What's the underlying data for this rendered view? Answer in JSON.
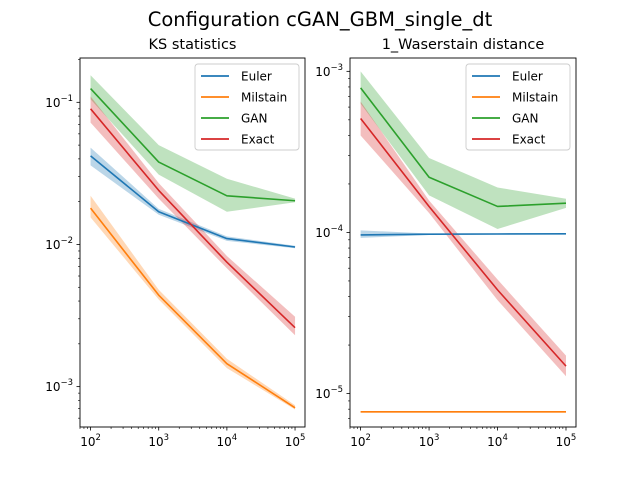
{
  "suptitle": "Configuration cGAN_GBM_single_dt",
  "colors": {
    "Euler": "#1f77b4",
    "Milstain": "#ff7f0e",
    "GAN": "#2ca02c",
    "Exact": "#d62728"
  },
  "chart_data": [
    {
      "type": "line",
      "title": "KS statistics",
      "xscale": "log",
      "yscale": "log",
      "xlim": [
        70,
        140000
      ],
      "ylim": [
        0.00052,
        0.205
      ],
      "x": [
        100,
        1000,
        10000,
        100000
      ],
      "xticks": [
        {
          "value": 100,
          "base": "10",
          "exp": "2"
        },
        {
          "value": 1000,
          "base": "10",
          "exp": "3"
        },
        {
          "value": 10000,
          "base": "10",
          "exp": "4"
        },
        {
          "value": 100000,
          "base": "10",
          "exp": "5"
        }
      ],
      "yticks": [
        {
          "value": 0.1,
          "base": "10",
          "exp": "−1"
        },
        {
          "value": 0.01,
          "base": "10",
          "exp": "−2"
        },
        {
          "value": 0.001,
          "base": "10",
          "exp": "−3"
        }
      ],
      "legend_position": "upper right",
      "series": [
        {
          "name": "Euler",
          "values": [
            0.042,
            0.017,
            0.011,
            0.0096
          ],
          "lower": [
            0.036,
            0.0162,
            0.0106,
            0.0094
          ],
          "upper": [
            0.048,
            0.0178,
            0.0114,
            0.0098
          ]
        },
        {
          "name": "Milstain",
          "values": [
            0.018,
            0.0044,
            0.00145,
            0.00071
          ],
          "lower": [
            0.0155,
            0.0041,
            0.00135,
            0.00069
          ],
          "upper": [
            0.022,
            0.0048,
            0.00157,
            0.00074
          ]
        },
        {
          "name": "GAN",
          "values": [
            0.125,
            0.038,
            0.022,
            0.0203
          ],
          "lower": [
            0.105,
            0.031,
            0.017,
            0.0198
          ],
          "upper": [
            0.155,
            0.05,
            0.029,
            0.021
          ]
        },
        {
          "name": "Exact",
          "values": [
            0.09,
            0.024,
            0.0075,
            0.0026
          ],
          "lower": [
            0.072,
            0.021,
            0.0068,
            0.0023
          ],
          "upper": [
            0.11,
            0.027,
            0.0083,
            0.0031
          ]
        }
      ]
    },
    {
      "type": "line",
      "title": "1_Waserstain distance",
      "xscale": "log",
      "yscale": "log",
      "xlim": [
        70,
        140000
      ],
      "ylim": [
        6.2e-06,
        0.00121
      ],
      "x": [
        100,
        1000,
        10000,
        100000
      ],
      "xticks": [
        {
          "value": 100,
          "base": "10",
          "exp": "2"
        },
        {
          "value": 1000,
          "base": "10",
          "exp": "3"
        },
        {
          "value": 10000,
          "base": "10",
          "exp": "4"
        },
        {
          "value": 100000,
          "base": "10",
          "exp": "5"
        }
      ],
      "yticks": [
        {
          "value": 0.001,
          "base": "10",
          "exp": "−3"
        },
        {
          "value": 0.0001,
          "base": "10",
          "exp": "−4"
        },
        {
          "value": 1e-05,
          "base": "10",
          "exp": "−5"
        }
      ],
      "legend_position": "upper right",
      "series": [
        {
          "name": "Euler",
          "values": [
            9.65e-05,
            9.75e-05,
            9.78e-05,
            9.8e-05
          ],
          "lower": [
            9.25e-05,
            9.65e-05,
            9.7e-05,
            9.75e-05
          ],
          "upper": [
            0.000103,
            9.85e-05,
            9.88e-05,
            9.85e-05
          ]
        },
        {
          "name": "Milstain",
          "values": [
            7.7e-06,
            7.7e-06,
            7.7e-06,
            7.7e-06
          ],
          "lower": [
            7.6e-06,
            7.6e-06,
            7.6e-06,
            7.6e-06
          ],
          "upper": [
            7.8e-06,
            7.8e-06,
            7.8e-06,
            7.8e-06
          ]
        },
        {
          "name": "GAN",
          "values": [
            0.00079,
            0.00022,
            0.000145,
            0.000152
          ],
          "lower": [
            0.00063,
            0.00017,
            0.000105,
            0.000142
          ],
          "upper": [
            0.001,
            0.00029,
            0.00019,
            0.000162
          ]
        },
        {
          "name": "Exact",
          "values": [
            0.00051,
            0.000145,
            4.4e-05,
            1.48e-05
          ],
          "lower": [
            0.0004,
            0.000132,
            3.8e-05,
            1.28e-05
          ],
          "upper": [
            0.00065,
            0.000158,
            5.1e-05,
            1.72e-05
          ]
        }
      ]
    }
  ]
}
